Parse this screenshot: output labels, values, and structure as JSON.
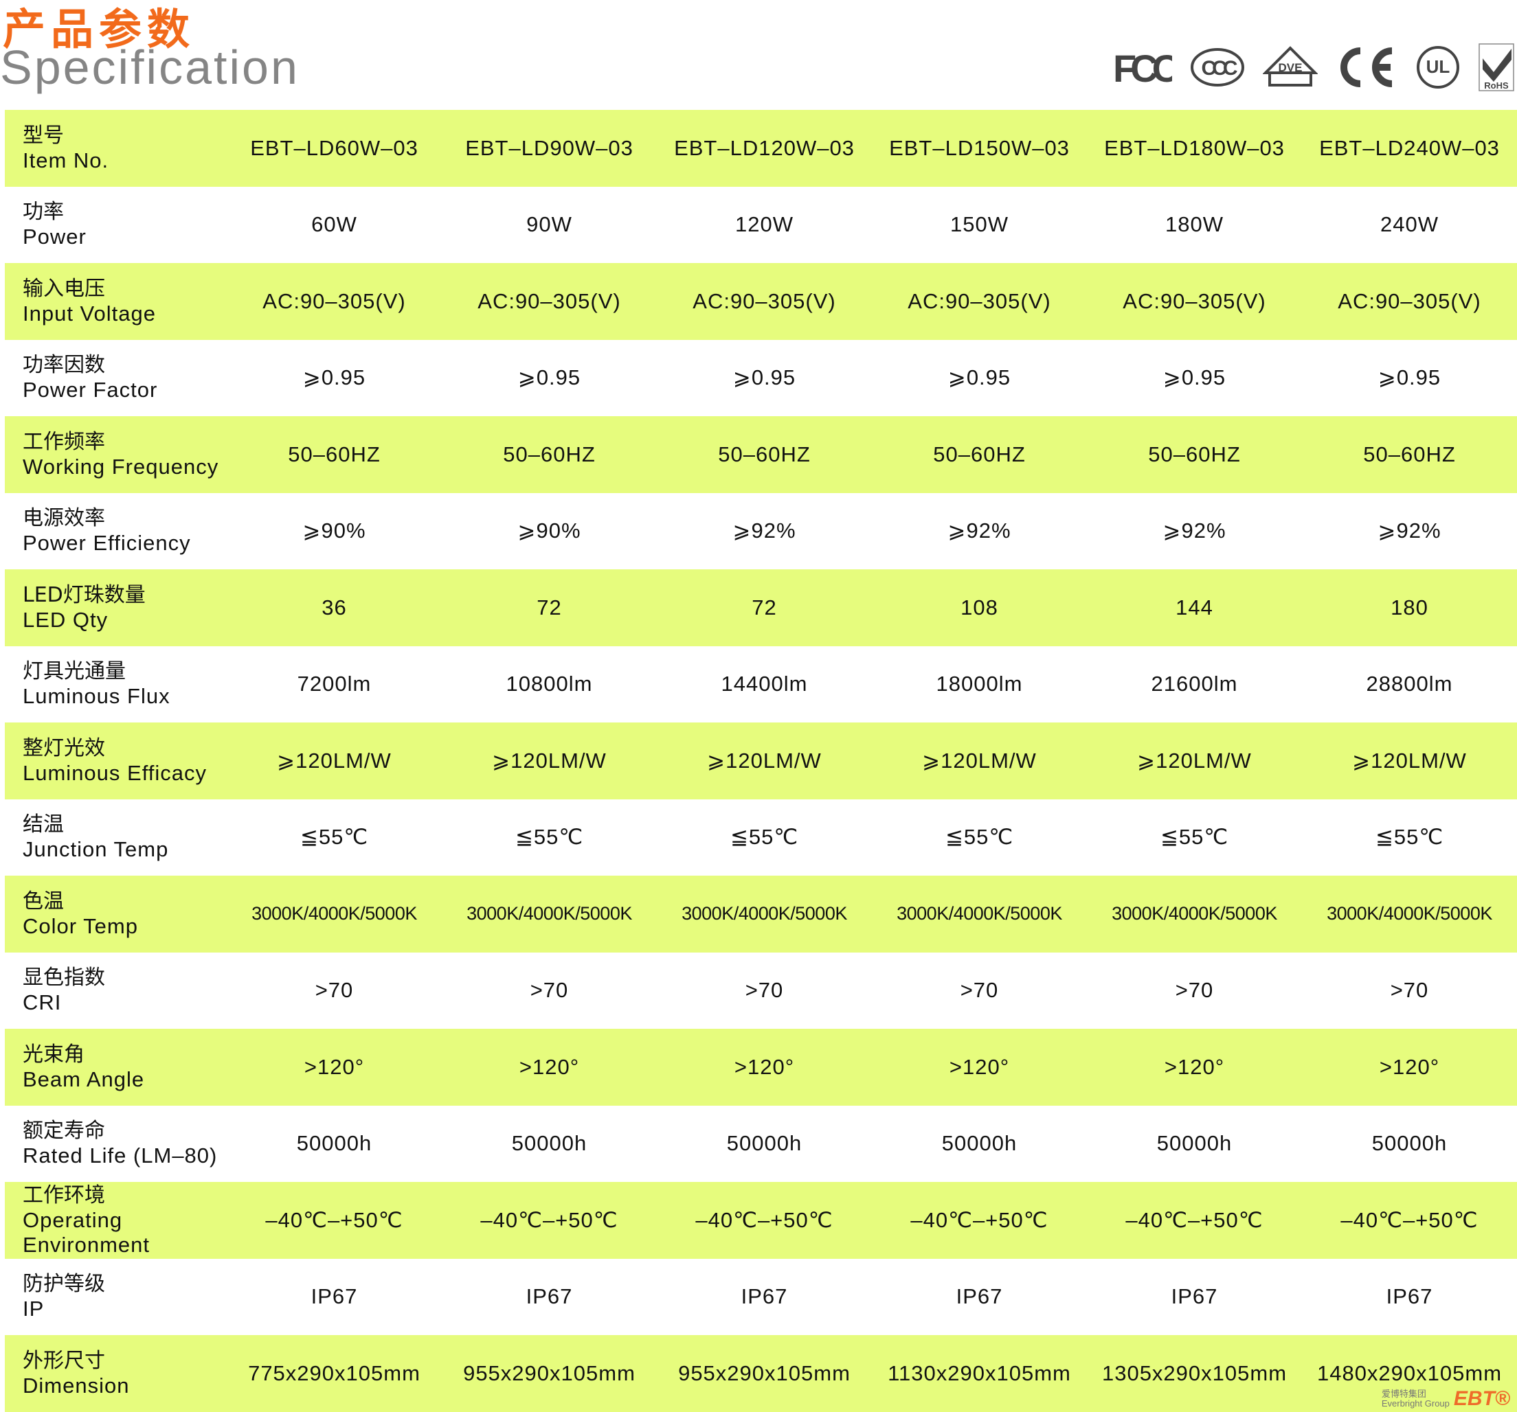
{
  "header": {
    "title_cn": "产品参数",
    "title_en": "Specification"
  },
  "certifications": [
    {
      "name": "FCC",
      "icon": "fcc-icon"
    },
    {
      "name": "CCC",
      "icon": "ccc-icon"
    },
    {
      "name": "DVE",
      "icon": "dve-icon"
    },
    {
      "name": "CE",
      "icon": "ce-icon"
    },
    {
      "name": "UL",
      "icon": "ul-icon"
    },
    {
      "name": "RoHS",
      "icon": "rohs-icon"
    }
  ],
  "colors": {
    "row_highlight": "#e6fc7d",
    "title_orange": "#f26a1b",
    "title_gray": "#858585"
  },
  "table": {
    "rows": [
      {
        "cn": "型号",
        "en": "Item No.",
        "values": [
          "EBT–LD60W–03",
          "EBT–LD90W–03",
          "EBT–LD120W–03",
          "EBT–LD150W–03",
          "EBT–LD180W–03",
          "EBT–LD240W–03"
        ]
      },
      {
        "cn": "功率",
        "en": "Power",
        "values": [
          "60W",
          "90W",
          "120W",
          "150W",
          "180W",
          "240W"
        ]
      },
      {
        "cn": "输入电压",
        "en": "Input Voltage",
        "values": [
          "AC:90–305(V)",
          "AC:90–305(V)",
          "AC:90–305(V)",
          "AC:90–305(V)",
          "AC:90–305(V)",
          "AC:90–305(V)"
        ]
      },
      {
        "cn": "功率因数",
        "en": "Power Factor",
        "values": [
          "⩾0.95",
          "⩾0.95",
          "⩾0.95",
          "⩾0.95",
          "⩾0.95",
          "⩾0.95"
        ]
      },
      {
        "cn": "工作频率",
        "en": "Working Frequency",
        "values": [
          "50–60HZ",
          "50–60HZ",
          "50–60HZ",
          "50–60HZ",
          "50–60HZ",
          "50–60HZ"
        ]
      },
      {
        "cn": "电源效率",
        "en": "Power Efficiency",
        "values": [
          "⩾90%",
          "⩾90%",
          "⩾92%",
          "⩾92%",
          "⩾92%",
          "⩾92%"
        ]
      },
      {
        "cn": "LED灯珠数量",
        "en": "LED Qty",
        "values": [
          "36",
          "72",
          "72",
          "108",
          "144",
          "180"
        ]
      },
      {
        "cn": "灯具光通量",
        "en": "Luminous Flux",
        "values": [
          "7200lm",
          "10800lm",
          "14400lm",
          "18000lm",
          "21600lm",
          "28800lm"
        ]
      },
      {
        "cn": "整灯光效",
        "en": "Luminous Efficacy",
        "values": [
          "⩾120LM/W",
          "⩾120LM/W",
          "⩾120LM/W",
          "⩾120LM/W",
          "⩾120LM/W",
          "⩾120LM/W"
        ]
      },
      {
        "cn": "结温",
        "en": "Junction Temp",
        "values": [
          "≦55℃",
          "≦55℃",
          "≦55℃",
          "≦55℃",
          "≦55℃",
          "≦55℃"
        ]
      },
      {
        "cn": "色温",
        "en": "Color Temp",
        "values": [
          "3000K/4000K/5000K",
          "3000K/4000K/5000K",
          "3000K/4000K/5000K",
          "3000K/4000K/5000K",
          "3000K/4000K/5000K",
          "3000K/4000K/5000K"
        ]
      },
      {
        "cn": "显色指数",
        "en": "CRI",
        "values": [
          ">70",
          ">70",
          ">70",
          ">70",
          ">70",
          ">70"
        ]
      },
      {
        "cn": "光束角",
        "en": "Beam Angle",
        "values": [
          ">120°",
          ">120°",
          ">120°",
          ">120°",
          ">120°",
          ">120°"
        ]
      },
      {
        "cn": "额定寿命",
        "en": "Rated Life (LM–80)",
        "values": [
          "50000h",
          "50000h",
          "50000h",
          "50000h",
          "50000h",
          "50000h"
        ]
      },
      {
        "cn": "工作环境",
        "en": "Operating Environment",
        "values": [
          "–40℃–+50℃",
          "–40℃–+50℃",
          "–40℃–+50℃",
          "–40℃–+50℃",
          "–40℃–+50℃",
          "–40℃–+50℃"
        ]
      },
      {
        "cn": "防护等级",
        "en": "IP",
        "values": [
          "IP67",
          "IP67",
          "IP67",
          "IP67",
          "IP67",
          "IP67"
        ]
      },
      {
        "cn": "外形尺寸",
        "en": "Dimension",
        "values": [
          "775x290x105mm",
          "955x290x105mm",
          "955x290x105mm",
          "1130x290x105mm",
          "1305x290x105mm",
          "1480x290x105mm"
        ]
      }
    ]
  },
  "brand": {
    "cn": "爱博特集团",
    "en": "Everbright Group",
    "logo": "EBT®"
  }
}
